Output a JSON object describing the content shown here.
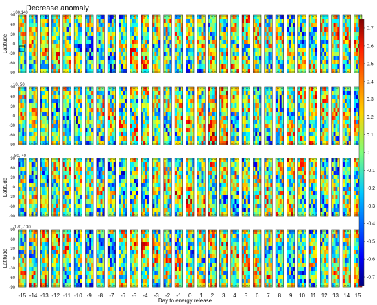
{
  "chart_data": {
    "type": "heatmap",
    "title": "Decrease anomaly",
    "xlabel": "Day to energy release",
    "ylabel": "Latitude",
    "days": [
      "-15",
      "-14",
      "-13",
      "-12",
      "-11",
      "-10",
      "-9",
      "-8",
      "-7",
      "-6",
      "-5",
      "-4",
      "-3",
      "-2",
      "-1",
      "0",
      "1",
      "2",
      "3",
      "4",
      "5",
      "6",
      "7",
      "8",
      "9",
      "10",
      "11",
      "12",
      "13",
      "14",
      "15"
    ],
    "latitude_ticks": [
      "90",
      "60",
      "30",
      "0",
      "-30",
      "-60",
      "-90"
    ],
    "latitude_range": [
      -90,
      90
    ],
    "panels": [
      {
        "region": "100,140",
        "ylabel": "Latitude",
        "marker_box": true
      },
      {
        "region": "10, 50",
        "ylabel": "",
        "marker_box": false
      },
      {
        "region": "-80,-40",
        "ylabel": "Latitude",
        "marker_box": false
      },
      {
        "region": "-170,-130",
        "ylabel": "Latitude",
        "marker_box": false
      }
    ],
    "colorbar": {
      "label": "r",
      "range": [
        -0.75,
        0.75
      ],
      "ticks": [
        "0.7",
        "0.6",
        "0.5",
        "0.4",
        "0.3",
        "0.2",
        "0.1",
        "0",
        "-0.1",
        "-0.2",
        "-0.3",
        "-0.4",
        "-0.5",
        "-0.6",
        "-0.7"
      ],
      "colormap": "jet"
    }
  }
}
